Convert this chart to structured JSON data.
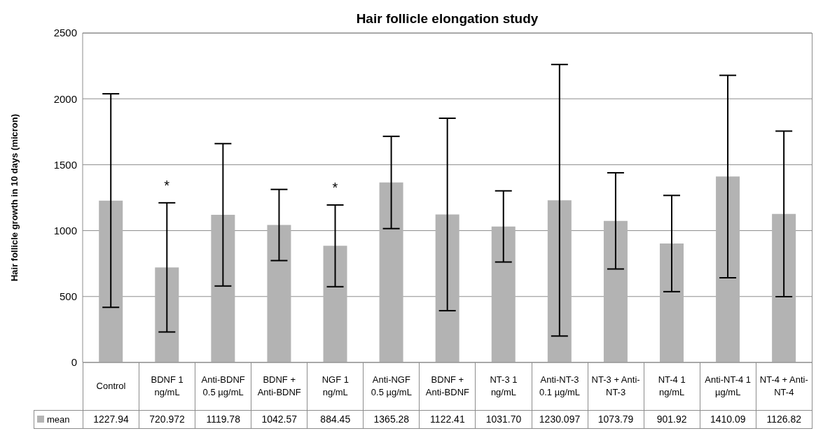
{
  "chart_data": {
    "type": "bar",
    "title": "Hair follicle elongation study",
    "ylabel": "Hair follicle growth in 10 days (micron)",
    "categories": [
      "Control",
      "BDNF 1 ng/mL",
      "Anti-BDNF 0.5 µg/mL",
      "BDNF + Anti-BDNF",
      "NGF 1 ng/mL",
      "Anti-NGF 0.5 µg/mL",
      "BDNF + Anti-BDNF",
      "NT-3 1 ng/mL",
      "Anti-NT-3 0.1 µg/mL",
      "NT-3 + Anti-NT-3",
      "NT-4 1 ng/mL",
      "Anti-NT-4 1 µg/mL",
      "NT-4 + Anti-NT-4"
    ],
    "series": [
      {
        "name": "mean",
        "color": "#b3b3b3",
        "values": [
          1227.94,
          720.972,
          1119.78,
          1042.57,
          884.45,
          1365.28,
          1122.41,
          1031.7,
          1230.097,
          1073.79,
          901.92,
          1410.09,
          1126.82
        ],
        "value_labels": [
          "1227.94",
          "720.972",
          "1119.78",
          "1042.57",
          "884.45",
          "1365.28",
          "1122.41",
          "1031.70",
          "1230.097",
          "1073.79",
          "901.92",
          "1410.09",
          "1126.82"
        ],
        "errors": [
          810,
          490,
          540,
          270,
          310,
          350,
          730,
          270,
          1030,
          365,
          365,
          768,
          628
        ]
      }
    ],
    "ylim": [
      0,
      2500
    ],
    "yticks": [
      0,
      500,
      1000,
      1500,
      2000,
      2500
    ],
    "grid": "y",
    "legend": "bottom",
    "annotations": [
      {
        "text": "*",
        "x": "BDNF 1 ng/mL",
        "y": 1211
      },
      {
        "text": "*",
        "x": "NGF 1 ng/mL",
        "y": 1194
      }
    ]
  }
}
